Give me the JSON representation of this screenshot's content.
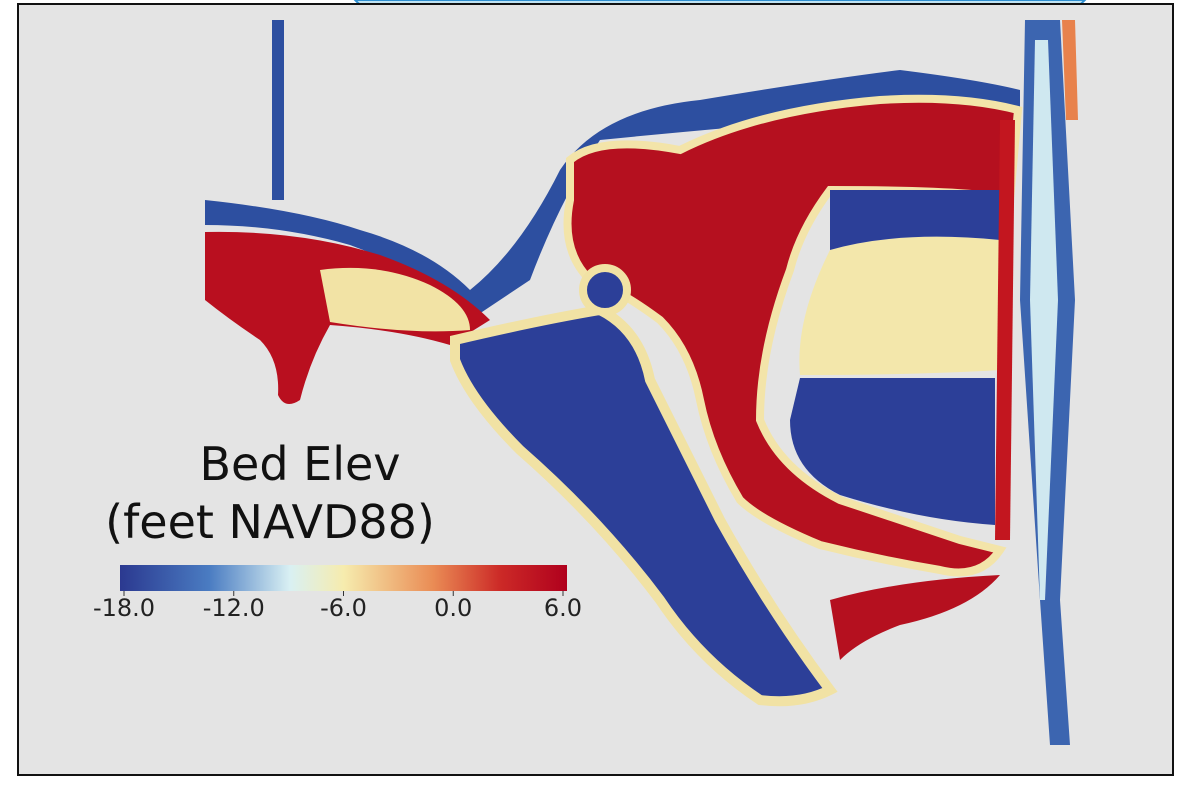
{
  "legend": {
    "title": [
      "Bed Elev",
      "(feet NAVD88)"
    ],
    "range": [
      -18,
      6
    ],
    "ticks": [
      {
        "value": -18,
        "label": "-18.0"
      },
      {
        "value": -12,
        "label": "-12.0"
      },
      {
        "value": -6,
        "label": "-6.0"
      },
      {
        "value": 0,
        "label": "0.0"
      },
      {
        "value": 6,
        "label": "6.0"
      }
    ]
  }
}
